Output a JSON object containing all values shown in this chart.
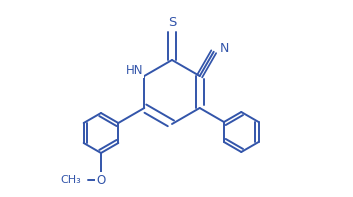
{
  "background_color": "#ffffff",
  "line_color": "#3355aa",
  "line_width": 1.4,
  "text_color": "#3355aa",
  "font_size": 8.5,
  "figsize": [
    3.53,
    1.97
  ],
  "dpi": 100,
  "xlim": [
    0.0,
    3.53
  ],
  "ylim": [
    0.0,
    1.97
  ]
}
